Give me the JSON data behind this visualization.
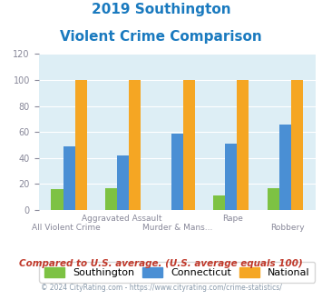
{
  "title_line1": "2019 Southington",
  "title_line2": "Violent Crime Comparison",
  "title_color": "#1a7abf",
  "top_labels": [
    "",
    "Aggravated Assault",
    "",
    "Rape",
    ""
  ],
  "bottom_labels": [
    "All Violent Crime",
    "",
    "Murder & Mans...",
    "",
    "Robbery"
  ],
  "southington": [
    16,
    17,
    0,
    11,
    17
  ],
  "connecticut": [
    49,
    42,
    59,
    51,
    66
  ],
  "national": [
    100,
    100,
    100,
    100,
    100
  ],
  "southington_color": "#7dc243",
  "connecticut_color": "#4a8fd4",
  "national_color": "#f5a623",
  "ylim": [
    0,
    120
  ],
  "yticks": [
    0,
    20,
    40,
    60,
    80,
    100,
    120
  ],
  "background_color": "#ddeef5",
  "legend_labels": [
    "Southington",
    "Connecticut",
    "National"
  ],
  "footnote1": "Compared to U.S. average. (U.S. average equals 100)",
  "footnote2": "© 2024 CityRating.com - https://www.cityrating.com/crime-statistics/",
  "footnote1_color": "#c0392b",
  "footnote2_color": "#8899aa",
  "label_color": "#888899"
}
